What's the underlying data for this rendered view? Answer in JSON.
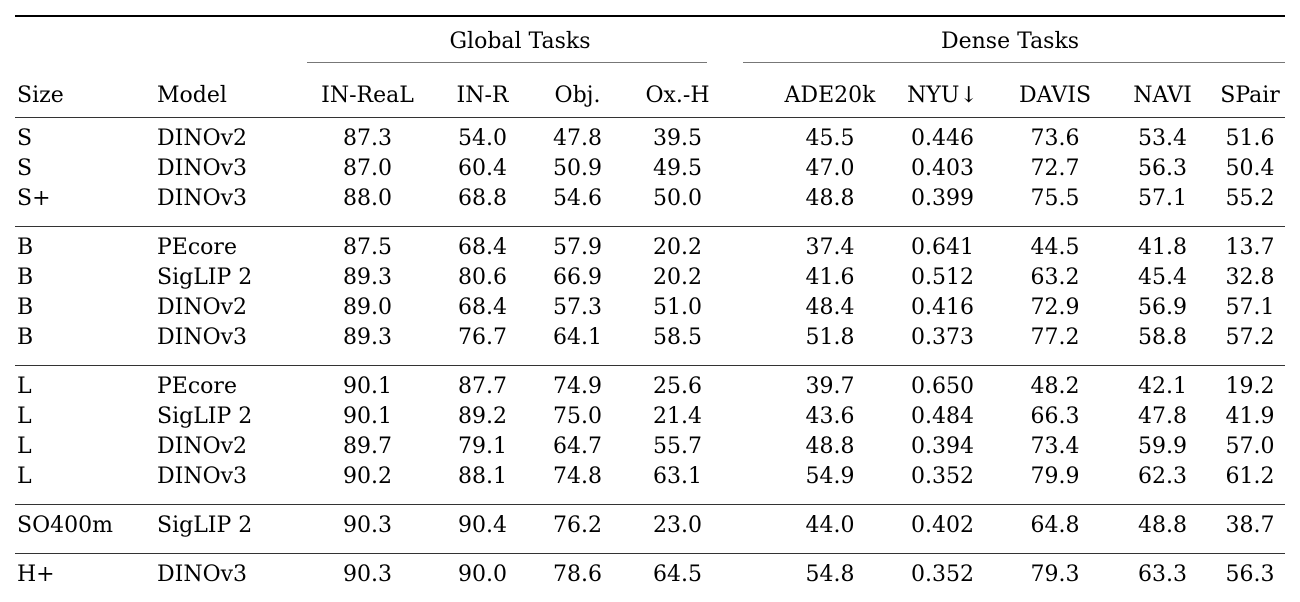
{
  "table": {
    "group_headers": [
      {
        "label": "Global Tasks",
        "span": 4
      },
      {
        "label": "Dense Tasks",
        "span": 5
      }
    ],
    "columns": [
      "Size",
      "Model",
      "IN-ReaL",
      "IN-R",
      "Obj.",
      "Ox.-H",
      "ADE20k",
      "NYU↓",
      "DAVIS",
      "NAVI",
      "SPair"
    ],
    "groups": [
      {
        "rows": [
          [
            "S",
            "DINOv2",
            "87.3",
            "54.0",
            "47.8",
            "39.5",
            "45.5",
            "0.446",
            "73.6",
            "53.4",
            "51.6"
          ],
          [
            "S",
            "DINOv3",
            "87.0",
            "60.4",
            "50.9",
            "49.5",
            "47.0",
            "0.403",
            "72.7",
            "56.3",
            "50.4"
          ],
          [
            "S+",
            "DINOv3",
            "88.0",
            "68.8",
            "54.6",
            "50.0",
            "48.8",
            "0.399",
            "75.5",
            "57.1",
            "55.2"
          ]
        ]
      },
      {
        "rows": [
          [
            "B",
            "PEcore",
            "87.5",
            "68.4",
            "57.9",
            "20.2",
            "37.4",
            "0.641",
            "44.5",
            "41.8",
            "13.7"
          ],
          [
            "B",
            "SigLIP 2",
            "89.3",
            "80.6",
            "66.9",
            "20.2",
            "41.6",
            "0.512",
            "63.2",
            "45.4",
            "32.8"
          ],
          [
            "B",
            "DINOv2",
            "89.0",
            "68.4",
            "57.3",
            "51.0",
            "48.4",
            "0.416",
            "72.9",
            "56.9",
            "57.1"
          ],
          [
            "B",
            "DINOv3",
            "89.3",
            "76.7",
            "64.1",
            "58.5",
            "51.8",
            "0.373",
            "77.2",
            "58.8",
            "57.2"
          ]
        ]
      },
      {
        "rows": [
          [
            "L",
            "PEcore",
            "90.1",
            "87.7",
            "74.9",
            "25.6",
            "39.7",
            "0.650",
            "48.2",
            "42.1",
            "19.2"
          ],
          [
            "L",
            "SigLIP 2",
            "90.1",
            "89.2",
            "75.0",
            "21.4",
            "43.6",
            "0.484",
            "66.3",
            "47.8",
            "41.9"
          ],
          [
            "L",
            "DINOv2",
            "89.7",
            "79.1",
            "64.7",
            "55.7",
            "48.8",
            "0.394",
            "73.4",
            "59.9",
            "57.0"
          ],
          [
            "L",
            "DINOv3",
            "90.2",
            "88.1",
            "74.8",
            "63.1",
            "54.9",
            "0.352",
            "79.9",
            "62.3",
            "61.2"
          ]
        ]
      },
      {
        "rows": [
          [
            "SO400m",
            "SigLIP 2",
            "90.3",
            "90.4",
            "76.2",
            "23.0",
            "44.0",
            "0.402",
            "64.8",
            "48.8",
            "38.7"
          ]
        ]
      },
      {
        "rows": [
          [
            "H+",
            "DINOv3",
            "90.3",
            "90.0",
            "78.6",
            "64.5",
            "54.8",
            "0.352",
            "79.3",
            "63.3",
            "56.3"
          ]
        ]
      }
    ]
  }
}
